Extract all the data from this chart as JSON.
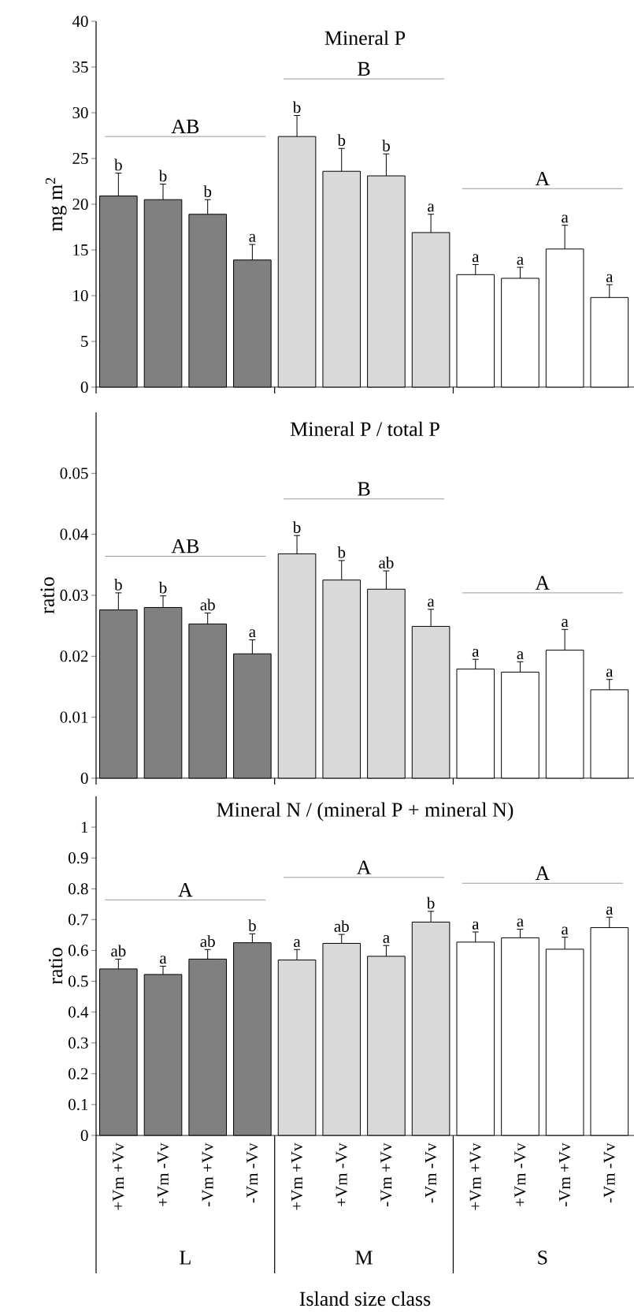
{
  "chart_data": [
    {
      "type": "bar",
      "title": "Mineral P",
      "ylabel": "mg m$^{2}$",
      "categories": [
        null,
        null,
        null,
        null,
        null,
        null,
        null,
        null,
        null,
        null,
        null,
        null
      ],
      "colors": [
        "#808080",
        "#808080",
        "#808080",
        "#808080",
        "#d9d9d9",
        "#d9d9d9",
        "#d9d9d9",
        "#d9d9d9",
        "#ffffff",
        "#ffffff",
        "#ffffff",
        "#ffffff"
      ],
      "values": [
        20.9,
        20.5,
        18.9,
        13.9,
        27.4,
        23.6,
        23.1,
        16.9,
        12.3,
        11.9,
        15.1,
        9.8
      ],
      "errors": [
        [
          20.9,
          23.4
        ],
        [
          20.5,
          22.2
        ],
        [
          18.9,
          20.5
        ],
        [
          13.9,
          15.6
        ],
        [
          27.4,
          29.7
        ],
        [
          23.6,
          26.1
        ],
        [
          23.1,
          25.5
        ],
        [
          16.9,
          18.9
        ],
        [
          12.3,
          13.4
        ],
        [
          11.9,
          13.1
        ],
        [
          15.1,
          17.7
        ],
        [
          9.8,
          11.2
        ]
      ],
      "value_labels": [
        "b",
        "b",
        "b",
        "a",
        "b",
        "b",
        "b",
        "a",
        "a",
        "a",
        "a",
        "a"
      ],
      "annotations": [
        "AB",
        "B",
        "A"
      ],
      "ylim": [
        0,
        40
      ],
      "yticks": [
        0,
        5,
        10,
        15,
        20,
        25,
        30,
        35,
        40
      ]
    },
    {
      "type": "bar",
      "title": "Mineral P / total P",
      "ylabel": "ratio",
      "categories": [
        null,
        null,
        null,
        null,
        null,
        null,
        null,
        null,
        null,
        null,
        null,
        null
      ],
      "colors": [
        "#808080",
        "#808080",
        "#808080",
        "#808080",
        "#d9d9d9",
        "#d9d9d9",
        "#d9d9d9",
        "#d9d9d9",
        "#ffffff",
        "#ffffff",
        "#ffffff",
        "#ffffff"
      ],
      "values": [
        0.0276,
        0.028,
        0.0253,
        0.0204,
        0.0368,
        0.0325,
        0.031,
        0.0249,
        0.0179,
        0.0174,
        0.021,
        0.0145
      ],
      "errors": [
        [
          0.0276,
          0.0304
        ],
        [
          0.028,
          0.0299
        ],
        [
          0.0253,
          0.0271
        ],
        [
          0.0204,
          0.0227
        ],
        [
          0.0368,
          0.0398
        ],
        [
          0.0325,
          0.0357
        ],
        [
          0.031,
          0.034
        ],
        [
          0.0249,
          0.0277
        ],
        [
          0.0179,
          0.0195
        ],
        [
          0.0174,
          0.0191
        ],
        [
          0.021,
          0.0244
        ],
        [
          0.0145,
          0.0162
        ]
      ],
      "value_labels": [
        "b",
        "b",
        "ab",
        "a",
        "b",
        "b",
        "ab",
        "a",
        "a",
        "a",
        "a",
        "a"
      ],
      "annotations": [
        "AB",
        "B",
        "A"
      ],
      "ylim": [
        0,
        0.06
      ],
      "yticks": [
        0,
        0.01,
        0.02,
        0.03,
        0.04,
        0.05
      ]
    },
    {
      "type": "bar",
      "title": "Mineral N / (mineral P + mineral N)",
      "ylabel": "ratio",
      "xlabel": "Island size class",
      "categories": [
        "+Vm +Vv",
        "+Vm -Vv",
        "-Vm +Vv",
        "-Vm -Vv",
        "+Vm +Vv",
        "+Vm -Vv",
        "-Vm +Vv",
        "-Vm -Vv",
        "+Vm +Vv",
        "+Vm -Vv",
        "-Vm +Vv",
        "-Vm -Vv"
      ],
      "colors": [
        "#808080",
        "#808080",
        "#808080",
        "#808080",
        "#d9d9d9",
        "#d9d9d9",
        "#d9d9d9",
        "#d9d9d9",
        "#ffffff",
        "#ffffff",
        "#ffffff",
        "#ffffff"
      ],
      "values": [
        0.54,
        0.522,
        0.572,
        0.625,
        0.569,
        0.623,
        0.581,
        0.692,
        0.627,
        0.641,
        0.604,
        0.674
      ],
      "errors": [
        [
          0.54,
          0.572
        ],
        [
          0.522,
          0.549
        ],
        [
          0.572,
          0.603
        ],
        [
          0.625,
          0.654
        ],
        [
          0.569,
          0.603
        ],
        [
          0.623,
          0.652
        ],
        [
          0.581,
          0.616
        ],
        [
          0.692,
          0.727
        ],
        [
          0.627,
          0.66
        ],
        [
          0.641,
          0.669
        ],
        [
          0.604,
          0.643
        ],
        [
          0.674,
          0.708
        ]
      ],
      "value_labels": [
        "ab",
        "a",
        "ab",
        "b",
        "a",
        "ab",
        "a",
        "b",
        "a",
        "a",
        "a",
        "a"
      ],
      "annotations": [
        "A",
        "A",
        "A",
        "L",
        "M",
        "S"
      ],
      "ylim": [
        0,
        1.1
      ],
      "yticks": [
        0,
        0.1,
        0.2,
        0.3,
        0.4,
        0.5,
        0.6,
        0.7,
        0.8,
        0.9,
        1
      ]
    }
  ]
}
